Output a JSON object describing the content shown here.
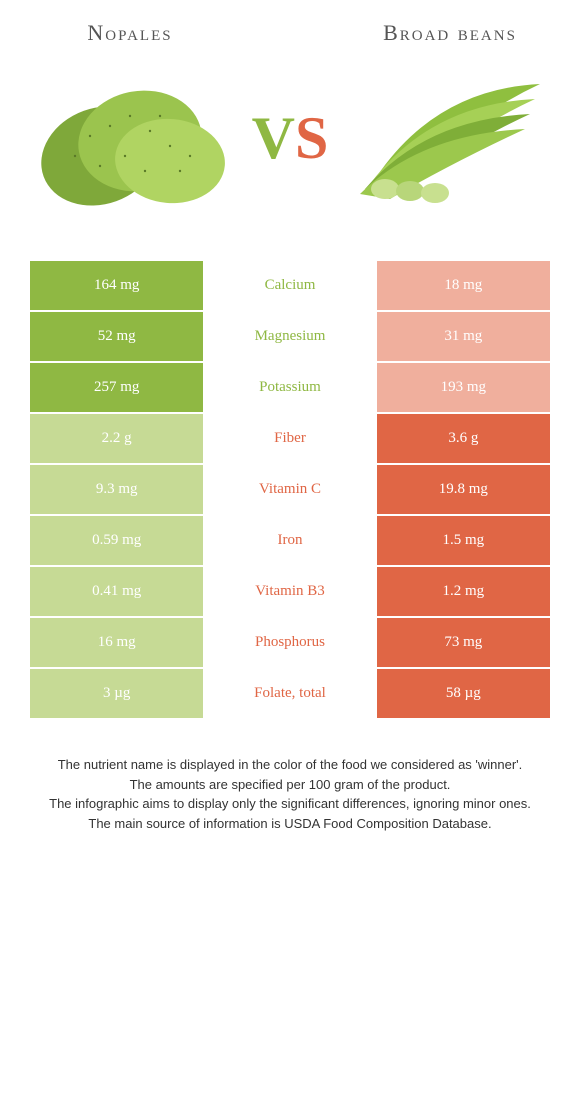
{
  "header": {
    "left_title": "Nopales",
    "right_title": "Broad beans",
    "vs_v": "V",
    "vs_s": "S"
  },
  "colors": {
    "left_win": "#8fb843",
    "left_lose": "#c6da95",
    "right_win": "#e06645",
    "right_lose": "#f0af9d",
    "mid_green": "#8fb843",
    "mid_orange": "#e06645",
    "background": "#ffffff"
  },
  "rows": [
    {
      "left": "164 mg",
      "nutrient": "Calcium",
      "right": "18 mg",
      "winner": "left"
    },
    {
      "left": "52 mg",
      "nutrient": "Magnesium",
      "right": "31 mg",
      "winner": "left"
    },
    {
      "left": "257 mg",
      "nutrient": "Potassium",
      "right": "193 mg",
      "winner": "left"
    },
    {
      "left": "2.2 g",
      "nutrient": "Fiber",
      "right": "3.6 g",
      "winner": "right"
    },
    {
      "left": "9.3 mg",
      "nutrient": "Vitamin C",
      "right": "19.8 mg",
      "winner": "right"
    },
    {
      "left": "0.59 mg",
      "nutrient": "Iron",
      "right": "1.5 mg",
      "winner": "right"
    },
    {
      "left": "0.41 mg",
      "nutrient": "Vitamin B3",
      "right": "1.2 mg",
      "winner": "right"
    },
    {
      "left": "16 mg",
      "nutrient": "Phosphorus",
      "right": "73 mg",
      "winner": "right"
    },
    {
      "left": "3 µg",
      "nutrient": "Folate, total",
      "right": "58 µg",
      "winner": "right"
    }
  ],
  "footer": {
    "line1": "The nutrient name is displayed in the color of the food we considered as 'winner'.",
    "line2": "The amounts are specified per 100 gram of the product.",
    "line3": "The infographic aims to display only the significant differences, ignoring minor ones.",
    "line4": "The main source of information is USDA Food Composition Database."
  }
}
